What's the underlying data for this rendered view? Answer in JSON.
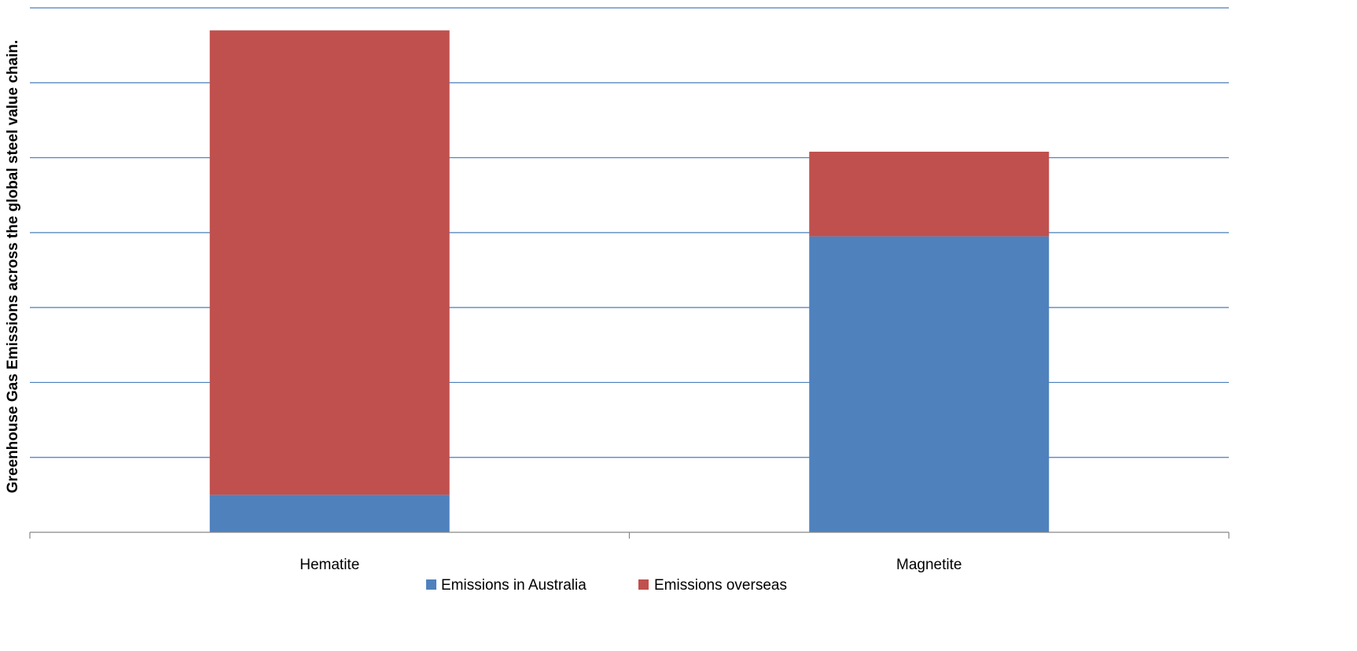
{
  "chart_data": {
    "type": "bar",
    "stacked": true,
    "title": "",
    "xlabel": "",
    "ylabel": "Greenhouse Gas Emissions across the global steel value chain.",
    "categories": [
      "Hematite",
      "Magnetite"
    ],
    "series": [
      {
        "name": "Emissions in Australia",
        "color": "#4F81BD",
        "values": [
          0.5,
          3.95
        ]
      },
      {
        "name": "Emissions overseas",
        "color": "#C0504D",
        "values": [
          6.2,
          1.13
        ]
      }
    ],
    "ylim": [
      0,
      7
    ],
    "y_gridlines": [
      1,
      2,
      3,
      4,
      5,
      6,
      7
    ],
    "y_tick_labels_shown": false,
    "grid": true,
    "grid_color": "#4A7EBB",
    "legend": "bottom"
  }
}
